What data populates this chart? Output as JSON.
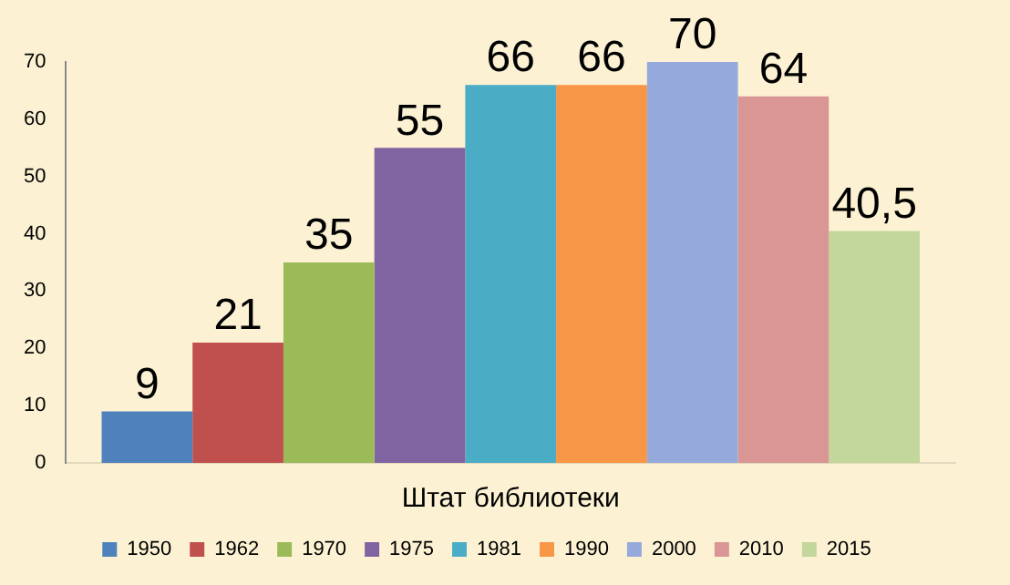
{
  "chart_data": {
    "type": "bar",
    "categories": [
      "Штат библиотеки"
    ],
    "ylim": [
      0,
      70
    ],
    "yticks": [
      0,
      10,
      20,
      30,
      40,
      50,
      60,
      70
    ],
    "grid": false,
    "legend": "bottom",
    "series": [
      {
        "name": "1950",
        "color": "#4f81bd",
        "values": [
          9
        ],
        "value_labels": [
          "9"
        ]
      },
      {
        "name": "1962",
        "color": "#c0504d",
        "values": [
          21
        ],
        "value_labels": [
          "21"
        ]
      },
      {
        "name": "1970",
        "color": "#9bbb59",
        "values": [
          35
        ],
        "value_labels": [
          "35"
        ]
      },
      {
        "name": "1975",
        "color": "#8064a2",
        "values": [
          55
        ],
        "value_labels": [
          "55"
        ]
      },
      {
        "name": "1981",
        "color": "#4bacc6",
        "values": [
          66
        ],
        "value_labels": [
          "66"
        ]
      },
      {
        "name": "1990",
        "color": "#f79646",
        "values": [
          66
        ],
        "value_labels": [
          "66"
        ]
      },
      {
        "name": "2000",
        "color": "#95a9dc",
        "values": [
          70
        ],
        "value_labels": [
          "70"
        ]
      },
      {
        "name": "2010",
        "color": "#d99694",
        "values": [
          64
        ],
        "value_labels": [
          "64"
        ]
      },
      {
        "name": "2015",
        "color": "#c3d69b",
        "values": [
          40.5
        ],
        "value_labels": [
          "40,5"
        ]
      }
    ]
  }
}
